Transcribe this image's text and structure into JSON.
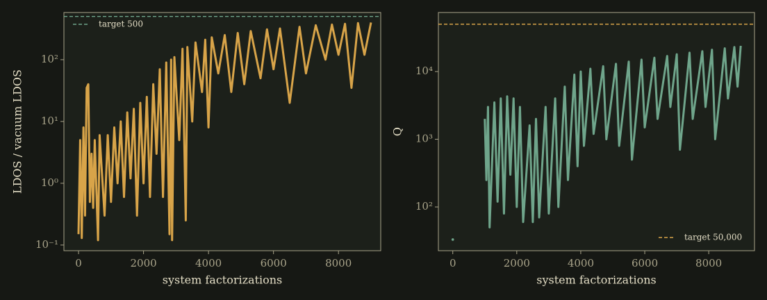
{
  "chart_data": [
    {
      "type": "line",
      "xlabel": "system factorizations",
      "ylabel": "LDOS / vacuum LDOS",
      "xlim": [
        -450,
        9300
      ],
      "ylim": [
        0.081,
        580
      ],
      "yscale": "log",
      "grid": false,
      "xticks": [
        0,
        2000,
        4000,
        6000,
        8000
      ],
      "yticks": [
        {
          "value": 0.1,
          "label": "10⁻¹"
        },
        {
          "value": 1,
          "label": "10⁰"
        },
        {
          "value": 10,
          "label": "10¹"
        },
        {
          "value": 100,
          "label": "10²"
        }
      ],
      "legend": "upper left",
      "hlines": [
        {
          "value": 500,
          "label": "target 500",
          "color": "#6fa58b"
        }
      ],
      "series": [
        {
          "color": "#d8a449",
          "x": [
            0,
            50,
            100,
            150,
            200,
            250,
            300,
            350,
            400,
            450,
            500,
            600,
            650,
            800,
            900,
            1000,
            1100,
            1200,
            1300,
            1400,
            1500,
            1600,
            1700,
            1800,
            1900,
            2000,
            2100,
            2200,
            2300,
            2400,
            2500,
            2600,
            2700,
            2800,
            2850,
            2880,
            2950,
            3100,
            3200,
            3300,
            3350,
            3500,
            3600,
            3800,
            3900,
            4000,
            4100,
            4300,
            4500,
            4700,
            4900,
            5100,
            5300,
            5600,
            5800,
            6000,
            6200,
            6500,
            6800,
            7000,
            7300,
            7600,
            7800,
            8000,
            8200,
            8400,
            8600,
            8800,
            9000
          ],
          "values": [
            0.15,
            5,
            0.13,
            8,
            0.3,
            35,
            40,
            0.5,
            3,
            0.4,
            5,
            0.12,
            6,
            0.3,
            6,
            0.5,
            8,
            1,
            10,
            0.6,
            14,
            1.2,
            16,
            0.3,
            20,
            1,
            25,
            0.6,
            40,
            3,
            70,
            0.6,
            90,
            0.15,
            100,
            0.12,
            110,
            5,
            150,
            0.25,
            160,
            10,
            190,
            30,
            210,
            8,
            230,
            60,
            250,
            30,
            270,
            40,
            290,
            50,
            310,
            70,
            320,
            20,
            340,
            60,
            360,
            100,
            370,
            120,
            380,
            35,
            390,
            120,
            400
          ]
        }
      ]
    },
    {
      "type": "line",
      "xlabel": "system factorizations",
      "ylabel": "Q",
      "xlim": [
        -450,
        9430
      ],
      "ylim": [
        22.6,
        74500
      ],
      "yscale": "log",
      "grid": false,
      "xticks": [
        0,
        2000,
        4000,
        6000,
        8000
      ],
      "yticks": [
        {
          "value": 100,
          "label": "10²"
        },
        {
          "value": 1000,
          "label": "10³"
        },
        {
          "value": 10000,
          "label": "10⁴"
        }
      ],
      "legend": "lower right",
      "hlines": [
        {
          "value": 50000,
          "label": "target 50,000",
          "color": "#d8a449"
        }
      ],
      "series": [
        {
          "color": "#6fa58b",
          "x": [
            0,
            500,
            1000,
            1050,
            1100,
            1150,
            1300,
            1400,
            1500,
            1600,
            1700,
            1800,
            1900,
            2000,
            2100,
            2200,
            2400,
            2500,
            2600,
            2700,
            2900,
            3000,
            3200,
            3300,
            3500,
            3600,
            3800,
            3900,
            4000,
            4100,
            4300,
            4400,
            4700,
            4800,
            5100,
            5200,
            5500,
            5600,
            5900,
            6000,
            6300,
            6400,
            6700,
            6800,
            7000,
            7100,
            7400,
            7500,
            7800,
            7900,
            8100,
            8200,
            8500,
            8600,
            8800,
            8900,
            9000
          ],
          "values": [
            33,
            null,
            2000,
            250,
            3000,
            50,
            3500,
            120,
            4000,
            80,
            4300,
            300,
            4000,
            100,
            3000,
            60,
            1600,
            60,
            2000,
            70,
            3000,
            80,
            4000,
            100,
            6000,
            250,
            9000,
            400,
            10000,
            800,
            11000,
            1200,
            12000,
            1000,
            13000,
            800,
            14000,
            500,
            15000,
            1500,
            16000,
            2000,
            17000,
            3000,
            18000,
            700,
            19000,
            2000,
            20000,
            3000,
            21000,
            1000,
            22000,
            4000,
            23000,
            6000,
            24000
          ]
        }
      ]
    }
  ]
}
